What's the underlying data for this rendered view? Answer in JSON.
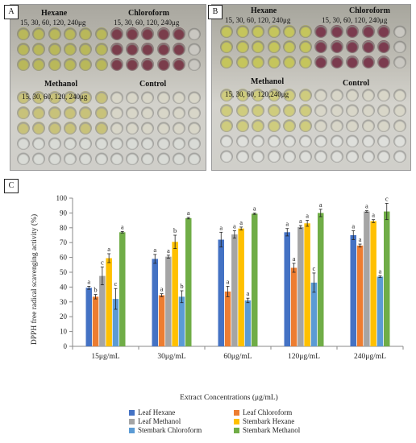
{
  "panels": {
    "a": {
      "letter": "A",
      "hexane_label": "Hexane",
      "chloroform_label": "Chloroform",
      "methanol_label": "Methanol",
      "control_label": "Control",
      "conc_row_top_left": "15,   30,   60,   120,   240μg",
      "conc_row_top_right": "15,   30,   60,   120,   240μg",
      "conc_row_bottom": "15,   30,   60,   120,   240μg",
      "well_colors": {
        "hexane": "#b9b85a",
        "chloroform": "#7a3d4b",
        "methanol": "#c8c27a",
        "empty": "#d9dbd6"
      }
    },
    "b": {
      "letter": "B",
      "hexane_label": "Hexane",
      "chloroform_label": "Chloroform",
      "methanol_label": "Methanol",
      "control_label": "Control",
      "conc_row_top_left": "15,   30,   60,   120,   240μg",
      "conc_row_top_right": "15,   30,   60,   120,   240μg",
      "conc_row_bottom": "15,   30,   60,   120,240μg",
      "well_colors": {
        "hexane": "#c5c55c",
        "chloroform": "#7b3b4e",
        "methanol": "#cfcc7e",
        "empty": "#dedfdb"
      }
    },
    "c": {
      "letter": "C"
    }
  },
  "chart_data": {
    "type": "bar",
    "title": "",
    "xlabel": "Extract Concentrations (μg/mL)",
    "ylabel": "DPPH free radical scavenging activity (%)",
    "ylim": [
      0,
      100
    ],
    "yticks": [
      0,
      10,
      20,
      30,
      40,
      50,
      60,
      70,
      80,
      90,
      100
    ],
    "grid": false,
    "legend_position": "bottom",
    "categories": [
      "15μg/mL",
      "30μg/mL",
      "60μg/mL",
      "120μg/mL",
      "240μg/mL"
    ],
    "series": [
      {
        "name": "Leaf Hexane",
        "color": "#4472c4",
        "values": [
          39.5,
          59,
          72,
          77,
          75
        ],
        "errors": [
          1,
          3,
          5,
          2.5,
          3
        ],
        "letters": [
          "a",
          "a",
          "a",
          "a",
          "a"
        ]
      },
      {
        "name": "Leaf Chloroform",
        "color": "#ed7d31",
        "values": [
          33.5,
          34.5,
          37,
          53,
          68
        ],
        "errors": [
          1.5,
          1,
          3.5,
          3,
          1
        ],
        "letters": [
          "b",
          "a",
          "a",
          "a",
          "a"
        ]
      },
      {
        "name": "Leaf Methanol",
        "color": "#a5a5a5",
        "values": [
          47.5,
          60.5,
          75.5,
          80.5,
          91
        ],
        "errors": [
          6,
          1,
          2.5,
          1,
          0.5
        ],
        "letters": [
          "c",
          "a",
          "a",
          "a",
          "a"
        ]
      },
      {
        "name": "Stembark Hexane",
        "color": "#ffc000",
        "values": [
          59.5,
          70.5,
          79.5,
          83,
          84.5
        ],
        "errors": [
          3,
          4.5,
          1,
          2,
          1
        ],
        "letters": [
          "a",
          "b",
          "a",
          "a",
          "a"
        ]
      },
      {
        "name": "Stembark Chloroform",
        "color": "#5b9bd5",
        "values": [
          32,
          33.5,
          31,
          43,
          47
        ],
        "errors": [
          7,
          4,
          1.5,
          6.5,
          0.5
        ],
        "letters": [
          "c",
          "b",
          "a",
          "c",
          "a"
        ]
      },
      {
        "name": "Stembark Methanol",
        "color": "#70ad47",
        "values": [
          77,
          86.5,
          89.5,
          90,
          91
        ],
        "errors": [
          0.5,
          0.5,
          0.5,
          2.5,
          5.5
        ],
        "letters": [
          "a",
          "a",
          "a",
          "a",
          "c"
        ]
      }
    ]
  }
}
